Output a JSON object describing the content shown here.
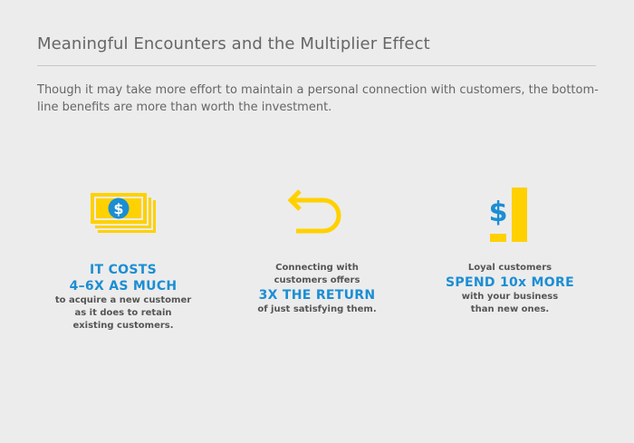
{
  "header": {
    "title": "Meaningful Encounters and the Multiplier Effect",
    "intro": "Though it may take more effort to maintain a personal connection with customers, the bottom-line benefits are more than worth the investment."
  },
  "stats": [
    {
      "icon": "money-stack-icon",
      "highlight_1": "IT COSTS",
      "highlight_2": "4–6X AS MUCH",
      "text_1": "to acquire a new customer",
      "text_2": "as it does to retain",
      "text_3": "existing customers."
    },
    {
      "icon": "return-arrow-icon",
      "text_1": "Connecting with",
      "text_2": "customers offers",
      "highlight": "3X THE RETURN",
      "text_3": "of just satisfying them."
    },
    {
      "icon": "dollar-bar-icon",
      "text_1": "Loyal customers",
      "highlight": "SPEND 10x MORE",
      "text_2": "with your business",
      "text_3": "than new ones."
    }
  ],
  "colors": {
    "accent_yellow": "#ffd100",
    "accent_blue": "#1b8ed4",
    "background": "#ececec"
  }
}
